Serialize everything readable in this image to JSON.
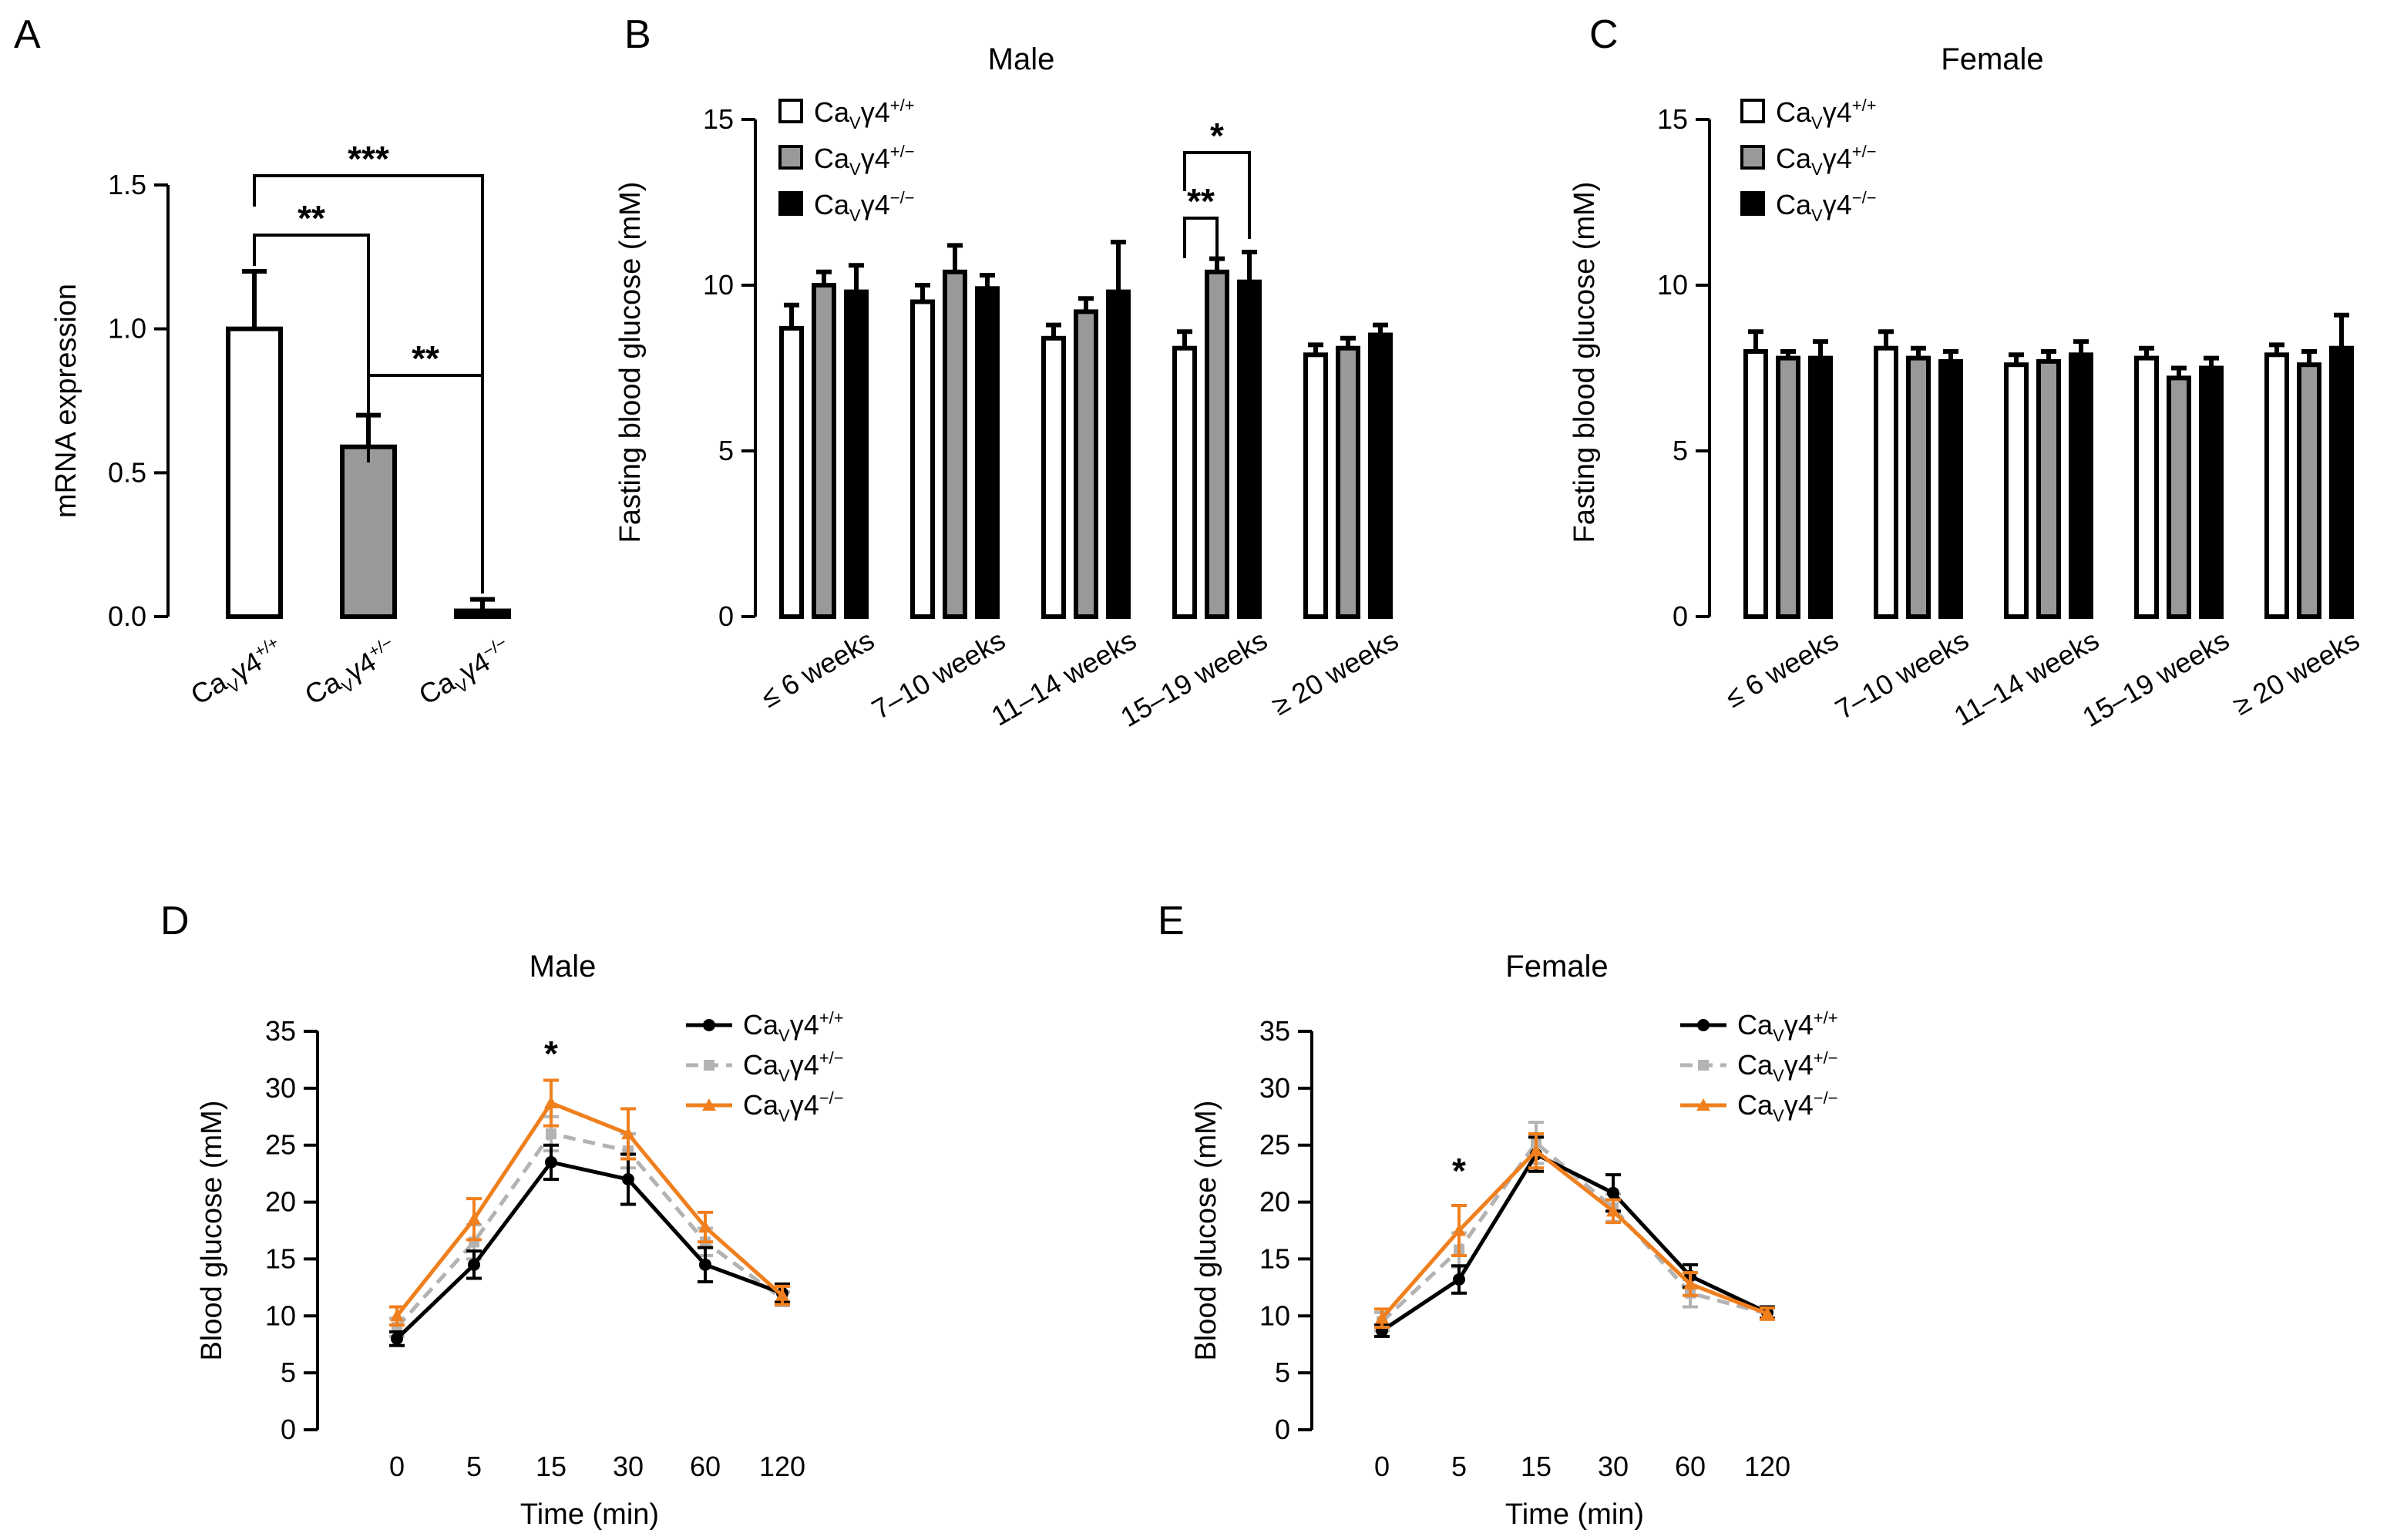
{
  "figure": {
    "panels": [
      "A",
      "B",
      "C",
      "D",
      "E"
    ]
  },
  "legend_labels": {
    "wt": {
      "prefix": "Ca",
      "sub": "V",
      "mid": "γ4",
      "sup": "+/+"
    },
    "het": {
      "prefix": "Ca",
      "sub": "V",
      "mid": "γ4",
      "sup": "+/−"
    },
    "ko": {
      "prefix": "Ca",
      "sub": "V",
      "mid": "γ4",
      "sup": "−/−"
    }
  },
  "colors": {
    "wt_fill": "#ffffff",
    "het_fill": "#999999",
    "ko_fill": "#000000",
    "line_wt": "#000000",
    "line_het": "#b3b3b3",
    "line_ko": "#f07f1e"
  },
  "chart_data": [
    {
      "panel": "A",
      "type": "bar",
      "title": "",
      "xlabel": "",
      "ylabel": "mRNA expression",
      "ylim": [
        0,
        1.5
      ],
      "yticks": [
        "0.0",
        "0.5",
        "1.0",
        "1.5"
      ],
      "ytick_values": [
        0,
        0.5,
        1.0,
        1.5
      ],
      "categories": [
        "wt",
        "het",
        "ko"
      ],
      "values": [
        1.0,
        0.59,
        0.02
      ],
      "errors": [
        0.2,
        0.11,
        0.04
      ],
      "significance": [
        {
          "from": 0,
          "to": 1,
          "label": "**"
        },
        {
          "from": 0,
          "to": 2,
          "label": "***"
        },
        {
          "from": 1,
          "to": 2,
          "label": "**"
        }
      ]
    },
    {
      "panel": "B",
      "type": "bar",
      "title": "Male",
      "xlabel": "",
      "ylabel": "Fasting blood glucose (mM)",
      "ylim": [
        0,
        15
      ],
      "yticks": [
        "0",
        "5",
        "10",
        "15"
      ],
      "ytick_values": [
        0,
        5,
        10,
        15
      ],
      "categories": [
        "≤ 6 weeks",
        "7–10 weeks",
        "11–14 weeks",
        "15–19 weeks",
        "≥ 20 weeks"
      ],
      "series": [
        {
          "name": "wt",
          "values": [
            8.7,
            9.5,
            8.4,
            8.1,
            7.9
          ],
          "errors": [
            0.7,
            0.5,
            0.4,
            0.5,
            0.3
          ]
        },
        {
          "name": "het",
          "values": [
            10.0,
            10.4,
            9.2,
            10.4,
            8.1
          ],
          "errors": [
            0.4,
            0.8,
            0.4,
            0.4,
            0.3
          ]
        },
        {
          "name": "ko",
          "values": [
            9.8,
            9.9,
            9.8,
            10.1,
            8.5
          ],
          "errors": [
            0.8,
            0.4,
            1.5,
            0.9,
            0.3
          ]
        }
      ],
      "significance": [
        {
          "group": 3,
          "from": 0,
          "to": 1,
          "label": "**"
        },
        {
          "group": 3,
          "from": 0,
          "to": 2,
          "label": "*"
        }
      ],
      "legend": "top-left"
    },
    {
      "panel": "C",
      "type": "bar",
      "title": "Female",
      "xlabel": "",
      "ylabel": "Fasting blood glucose (mM)",
      "ylim": [
        0,
        15
      ],
      "yticks": [
        "0",
        "5",
        "10",
        "15"
      ],
      "ytick_values": [
        0,
        5,
        10,
        15
      ],
      "categories": [
        "≤ 6 weeks",
        "7–10 weeks",
        "11–14 weeks",
        "15–19 weeks",
        "≥ 20 weeks"
      ],
      "series": [
        {
          "name": "wt",
          "values": [
            8.0,
            8.1,
            7.6,
            7.8,
            7.9
          ],
          "errors": [
            0.6,
            0.5,
            0.3,
            0.3,
            0.3
          ]
        },
        {
          "name": "het",
          "values": [
            7.8,
            7.8,
            7.7,
            7.2,
            7.6
          ],
          "errors": [
            0.2,
            0.3,
            0.3,
            0.3,
            0.4
          ]
        },
        {
          "name": "ko",
          "values": [
            7.8,
            7.7,
            7.9,
            7.5,
            8.1
          ],
          "errors": [
            0.5,
            0.3,
            0.4,
            0.3,
            1.0
          ]
        }
      ],
      "legend": "top-left"
    },
    {
      "panel": "D",
      "type": "line",
      "title": "Male",
      "xlabel": "Time (min)",
      "ylabel": "Blood glucose (mM)",
      "ylim": [
        0,
        35
      ],
      "yticks": [
        "0",
        "5",
        "10",
        "15",
        "20",
        "25",
        "30",
        "35"
      ],
      "ytick_values": [
        0,
        5,
        10,
        15,
        20,
        25,
        30,
        35
      ],
      "categories": [
        "0",
        "5",
        "15",
        "30",
        "60",
        "120"
      ],
      "series": [
        {
          "name": "wt",
          "values": [
            8.0,
            14.5,
            23.5,
            22.0,
            14.5,
            12.0
          ],
          "errors": [
            0.6,
            1.2,
            1.5,
            2.2,
            1.5,
            0.8
          ]
        },
        {
          "name": "het",
          "values": [
            9.0,
            16.5,
            26.0,
            24.5,
            16.5,
            11.5
          ],
          "errors": [
            0.8,
            1.5,
            1.5,
            1.5,
            1.2,
            0.6
          ]
        },
        {
          "name": "ko",
          "values": [
            10.0,
            18.5,
            28.7,
            26.0,
            17.8,
            11.8
          ],
          "errors": [
            0.8,
            1.8,
            2.0,
            2.2,
            1.3,
            0.8
          ]
        }
      ],
      "significance": [
        {
          "x_index": 2,
          "label": "*"
        }
      ],
      "legend": "top-right"
    },
    {
      "panel": "E",
      "type": "line",
      "title": "Female",
      "xlabel": "Time (min)",
      "ylabel": "Blood glucose (mM)",
      "ylim": [
        0,
        35
      ],
      "yticks": [
        "0",
        "5",
        "10",
        "15",
        "20",
        "25",
        "30",
        "35"
      ],
      "ytick_values": [
        0,
        5,
        10,
        15,
        20,
        25,
        30,
        35
      ],
      "categories": [
        "0",
        "5",
        "15",
        "30",
        "60",
        "120"
      ],
      "series": [
        {
          "name": "wt",
          "values": [
            8.7,
            13.2,
            24.2,
            20.8,
            13.5,
            10.3
          ],
          "errors": [
            0.5,
            1.2,
            1.5,
            1.6,
            1.0,
            0.5
          ]
        },
        {
          "name": "het",
          "values": [
            9.5,
            15.8,
            25.2,
            19.5,
            12.0,
            10.2
          ],
          "errors": [
            0.8,
            1.5,
            1.8,
            1.2,
            1.2,
            0.5
          ]
        },
        {
          "name": "ko",
          "values": [
            9.8,
            17.5,
            24.5,
            19.2,
            12.8,
            10.2
          ],
          "errors": [
            0.8,
            2.2,
            1.5,
            1.0,
            1.0,
            0.5
          ]
        }
      ],
      "significance": [
        {
          "x_index": 1,
          "label": "*"
        }
      ],
      "legend": "top-right"
    }
  ]
}
